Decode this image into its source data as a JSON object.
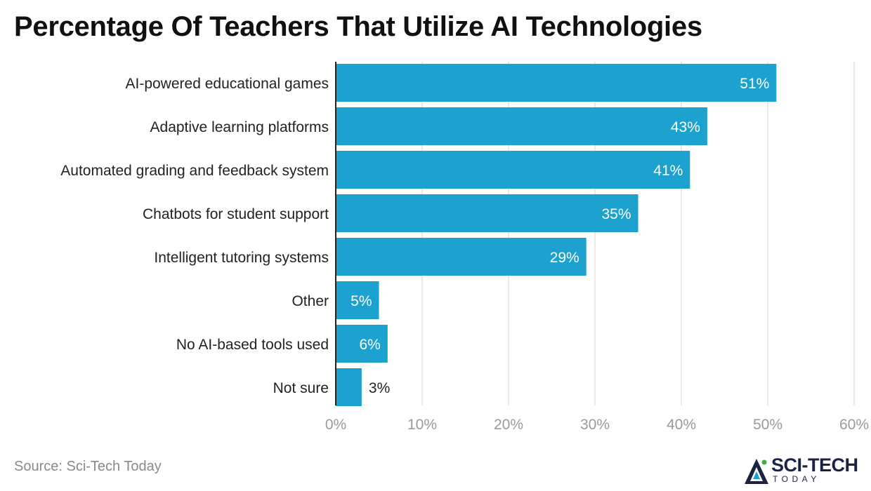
{
  "chart_data": {
    "type": "bar",
    "orientation": "horizontal",
    "title": "Percentage Of Teachers That Utilize AI Technologies",
    "categories": [
      "AI-powered educational games",
      "Adaptive learning platforms",
      "Automated grading and feedback system",
      "Chatbots for student support",
      "Intelligent tutoring systems",
      "Other",
      "No AI-based tools used",
      "Not sure"
    ],
    "values": [
      51,
      43,
      41,
      35,
      29,
      5,
      6,
      3
    ],
    "value_labels": [
      "51%",
      "43%",
      "41%",
      "35%",
      "29%",
      "5%",
      "6%",
      "3%"
    ],
    "xlim": [
      0,
      60
    ],
    "x_ticks": [
      0,
      10,
      20,
      30,
      40,
      50,
      60
    ],
    "x_tick_labels": [
      "0%",
      "10%",
      "20%",
      "30%",
      "40%",
      "50%",
      "60%"
    ],
    "xlabel": "",
    "ylabel": "",
    "grid": "vertical",
    "legend": "none",
    "bar_color": "#1da1cf"
  },
  "source": "Source: Sci-Tech Today",
  "brand": {
    "name": "SCI-TECH",
    "sub": "TODAY",
    "icon": "sci-tech-logo-icon"
  },
  "colors": {
    "bar": "#1da1cf",
    "grid": "#e3e3e3",
    "axis": "#222222",
    "tick_text": "#9a9a9a",
    "category_text": "#222222",
    "brand": "#1c2244",
    "brand_accent": "#3fae49"
  }
}
